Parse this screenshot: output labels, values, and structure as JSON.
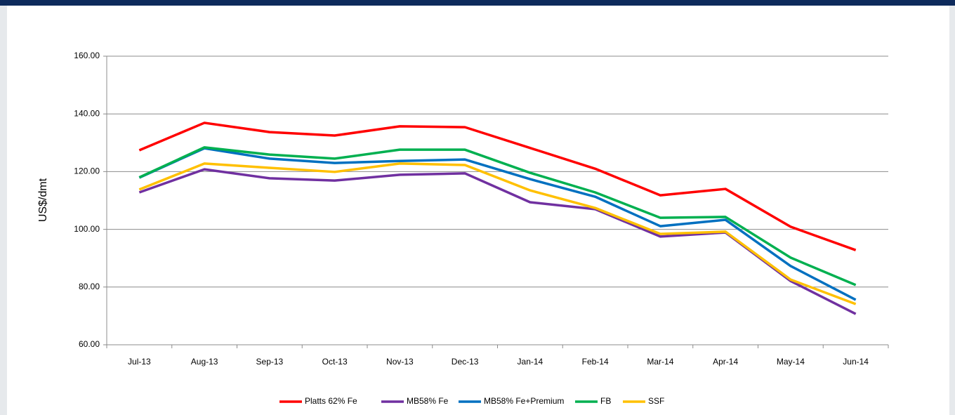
{
  "chart_data": {
    "type": "line",
    "y_label": "US$/dmt",
    "categories": [
      "Jul-13",
      "Aug-13",
      "Sep-13",
      "Oct-13",
      "Nov-13",
      "Dec-13",
      "Jan-14",
      "Feb-14",
      "Mar-14",
      "Apr-14",
      "May-14",
      "Jun-14"
    ],
    "series": [
      {
        "name": "Platts 62% Fe",
        "color": "#ff0000",
        "values": [
          127.4,
          136.9,
          133.7,
          132.5,
          135.7,
          135.4,
          128.2,
          121.0,
          111.8,
          114.0,
          100.9,
          92.8
        ]
      },
      {
        "name": "MB58% Fe",
        "color": "#7030a0",
        "values": [
          112.8,
          120.8,
          117.7,
          116.9,
          118.9,
          119.4,
          109.4,
          107.0,
          97.5,
          98.9,
          82.1,
          70.7
        ]
      },
      {
        "name": "MB58% Fe+Premium",
        "color": "#0070c0",
        "values": [
          117.9,
          128.1,
          124.5,
          123.0,
          123.7,
          124.2,
          117.4,
          111.3,
          101.1,
          103.3,
          87.3,
          75.6
        ]
      },
      {
        "name": "FB",
        "color": "#00b050",
        "values": [
          118.0,
          128.4,
          125.9,
          124.5,
          127.6,
          127.6,
          119.6,
          112.8,
          104.0,
          104.3,
          90.2,
          80.7
        ]
      },
      {
        "name": "SSF",
        "color": "#ffc000",
        "values": [
          113.8,
          122.8,
          121.3,
          119.9,
          122.8,
          122.3,
          113.5,
          107.4,
          98.4,
          99.2,
          82.6,
          74.1
        ]
      }
    ],
    "ylim": [
      60,
      160
    ],
    "yticks": [
      {
        "value": 60,
        "label": "60.00"
      },
      {
        "value": 80,
        "label": "80.00"
      },
      {
        "value": 100,
        "label": "100.00"
      },
      {
        "value": 120,
        "label": "120.00"
      },
      {
        "value": 140,
        "label": "140.00"
      },
      {
        "value": 160,
        "label": "160.00"
      }
    ],
    "grid": true,
    "legend": "bottom"
  }
}
